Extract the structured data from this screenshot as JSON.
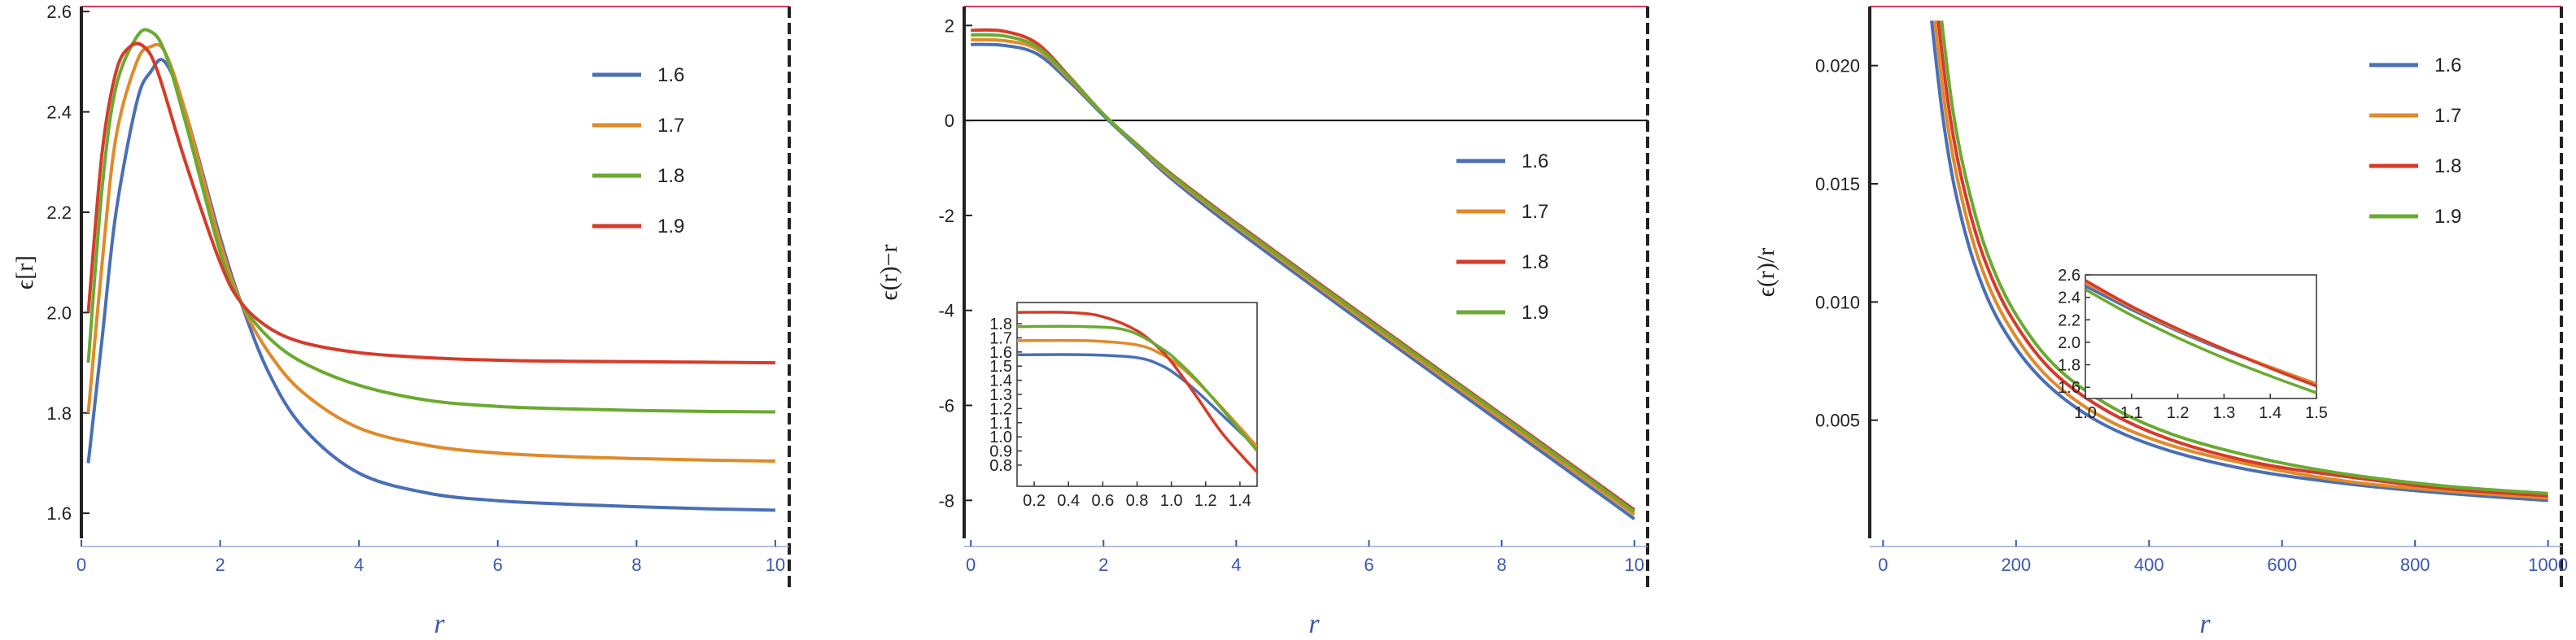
{
  "colors": {
    "s16": "#4a6fb5",
    "s17": "#e08a2a",
    "s18": "#d63b2a",
    "s19": "#6aaa30",
    "axis": "#222222",
    "accent_top": "#d63b5a",
    "xtick": "#3a57b0"
  },
  "chart_data": [
    {
      "type": "line",
      "xlabel": "r",
      "ylabel": "ϵ[r]",
      "xlim": [
        0,
        10.2
      ],
      "ylim": [
        1.55,
        2.61
      ],
      "xticks": [
        0,
        2,
        4,
        6,
        8,
        10
      ],
      "yticks": [
        1.6,
        1.8,
        2.0,
        2.2,
        2.4,
        2.6
      ],
      "xtick_labels": [
        "0",
        "2",
        "4",
        "6",
        "8",
        "10"
      ],
      "ytick_labels": [
        "1.6",
        "1.8",
        "2.0",
        "2.2",
        "2.4",
        "2.6"
      ],
      "legend_position": "top-right",
      "series": [
        {
          "name": "1.6",
          "color": "#4a6fb5",
          "x": [
            0.1,
            0.3,
            0.5,
            0.8,
            1.0,
            1.2,
            1.5,
            2.0,
            2.3,
            2.7,
            3.2,
            4.0,
            5.0,
            6.0,
            7.0,
            8.0,
            9.0,
            10.0
          ],
          "y": [
            1.7,
            1.95,
            2.2,
            2.42,
            2.48,
            2.5,
            2.4,
            2.15,
            2.02,
            1.88,
            1.77,
            1.68,
            1.64,
            1.625,
            1.618,
            1.613,
            1.609,
            1.606
          ]
        },
        {
          "name": "1.7",
          "color": "#e08a2a",
          "x": [
            0.1,
            0.3,
            0.5,
            0.8,
            1.0,
            1.2,
            1.5,
            2.0,
            2.3,
            2.7,
            3.2,
            4.0,
            5.0,
            6.0,
            7.0,
            8.0,
            9.0,
            10.0
          ],
          "y": [
            1.8,
            2.1,
            2.35,
            2.5,
            2.53,
            2.52,
            2.4,
            2.14,
            2.02,
            1.92,
            1.84,
            1.77,
            1.735,
            1.72,
            1.713,
            1.709,
            1.706,
            1.704
          ]
        },
        {
          "name": "1.8",
          "color": "#6aaa30",
          "x": [
            0.1,
            0.3,
            0.5,
            0.8,
            1.0,
            1.2,
            1.5,
            2.0,
            2.3,
            2.7,
            3.2,
            4.0,
            5.0,
            6.0,
            7.0,
            8.0,
            9.0,
            10.0
          ],
          "y": [
            1.9,
            2.25,
            2.45,
            2.55,
            2.56,
            2.52,
            2.38,
            2.12,
            2.02,
            1.95,
            1.9,
            1.855,
            1.825,
            1.813,
            1.808,
            1.805,
            1.803,
            1.802
          ]
        },
        {
          "name": "1.9",
          "color": "#d63b2a",
          "x": [
            0.1,
            0.3,
            0.5,
            0.7,
            0.9,
            1.1,
            1.5,
            2.0,
            2.3,
            2.7,
            3.2,
            4.0,
            5.0,
            6.0,
            7.0,
            8.0,
            9.0,
            10.0
          ],
          "y": [
            2.0,
            2.32,
            2.48,
            2.53,
            2.53,
            2.48,
            2.3,
            2.1,
            2.02,
            1.97,
            1.94,
            1.92,
            1.91,
            1.905,
            1.903,
            1.902,
            1.901,
            1.9
          ]
        }
      ]
    },
    {
      "type": "line",
      "xlabel": "r",
      "ylabel": "ϵ(r)−r",
      "xlim": [
        -0.1,
        10.2
      ],
      "ylim": [
        -8.8,
        2.4
      ],
      "xticks": [
        0,
        2,
        4,
        6,
        8,
        10
      ],
      "yticks": [
        -8,
        -6,
        -4,
        -2,
        0,
        2
      ],
      "xtick_labels": [
        "0",
        "2",
        "4",
        "6",
        "8",
        "10"
      ],
      "ytick_labels": [
        "-8",
        "-6",
        "-4",
        "-2",
        "0",
        "2"
      ],
      "legend_position": "right",
      "series": [
        {
          "name": "1.6",
          "color": "#4a6fb5",
          "x": [
            0,
            0.5,
            1.0,
            1.5,
            2.0,
            2.5,
            3.0,
            4.0,
            6.0,
            8.0,
            10.0
          ],
          "y": [
            1.6,
            1.58,
            1.4,
            0.8,
            0.1,
            -0.55,
            -1.2,
            -2.3,
            -4.35,
            -6.37,
            -8.39
          ]
        },
        {
          "name": "1.7",
          "color": "#e08a2a",
          "x": [
            0,
            0.5,
            1.0,
            1.5,
            2.0,
            2.5,
            3.0,
            4.0,
            6.0,
            8.0,
            10.0
          ],
          "y": [
            1.7,
            1.68,
            1.5,
            0.85,
            0.12,
            -0.52,
            -1.15,
            -2.23,
            -4.28,
            -6.29,
            -8.3
          ]
        },
        {
          "name": "1.8",
          "color": "#d63b2a",
          "x": [
            0,
            0.5,
            1.0,
            1.5,
            2.0,
            2.5,
            3.0,
            4.0,
            6.0,
            8.0,
            10.0
          ],
          "y": [
            1.9,
            1.88,
            1.62,
            0.9,
            0.13,
            -0.5,
            -1.1,
            -2.16,
            -4.19,
            -6.19,
            -8.2
          ]
        },
        {
          "name": "1.9",
          "color": "#6aaa30",
          "x": [
            0,
            0.5,
            1.0,
            1.5,
            2.0,
            2.5,
            3.0,
            4.0,
            6.0,
            8.0,
            10.0
          ],
          "y": [
            1.8,
            1.78,
            1.55,
            0.88,
            0.13,
            -0.51,
            -1.12,
            -2.19,
            -4.22,
            -6.22,
            -8.24
          ]
        }
      ],
      "inset": {
        "xlim": [
          0.1,
          1.5
        ],
        "ylim": [
          0.65,
          1.95
        ],
        "xticks": [
          0.2,
          0.4,
          0.6,
          0.8,
          1.0,
          1.2,
          1.4
        ],
        "yticks": [
          0.8,
          0.9,
          1.0,
          1.1,
          1.2,
          1.3,
          1.4,
          1.5,
          1.6,
          1.7,
          1.8
        ],
        "xtick_labels": [
          "0.2",
          "0.4",
          "0.6",
          "0.8",
          "1.0",
          "1.2",
          "1.4"
        ],
        "ytick_labels": [
          "0.8",
          "0.9",
          "1.0",
          "1.1",
          "1.2",
          "1.3",
          "1.4",
          "1.5",
          "1.6",
          "1.7",
          "1.8"
        ],
        "series": [
          {
            "name": "1.6",
            "color": "#4a6fb5",
            "x": [
              0.1,
              0.5,
              0.8,
              0.95,
              1.05,
              1.15,
              1.3,
              1.5
            ],
            "y": [
              1.58,
              1.58,
              1.56,
              1.5,
              1.42,
              1.32,
              1.15,
              0.92
            ]
          },
          {
            "name": "1.7",
            "color": "#e08a2a",
            "x": [
              0.1,
              0.5,
              0.8,
              0.95,
              1.05,
              1.15,
              1.3,
              1.5
            ],
            "y": [
              1.68,
              1.68,
              1.65,
              1.58,
              1.5,
              1.39,
              1.2,
              0.93
            ]
          },
          {
            "name": "1.8",
            "color": "#d63b2a",
            "x": [
              0.1,
              0.4,
              0.6,
              0.8,
              0.95,
              1.05,
              1.15,
              1.3,
              1.5
            ],
            "y": [
              1.88,
              1.88,
              1.85,
              1.75,
              1.6,
              1.45,
              1.28,
              1.02,
              0.75
            ]
          },
          {
            "name": "1.9",
            "color": "#6aaa30",
            "x": [
              0.1,
              0.5,
              0.75,
              0.95,
              1.05,
              1.15,
              1.3,
              1.5
            ],
            "y": [
              1.78,
              1.78,
              1.75,
              1.62,
              1.52,
              1.4,
              1.19,
              0.9
            ]
          }
        ]
      }
    },
    {
      "type": "line",
      "xlabel": "r",
      "ylabel": "ϵ(r)/r",
      "xlim": [
        -20,
        1020
      ],
      "ylim": [
        0,
        0.0225
      ],
      "xticks": [
        0,
        200,
        400,
        600,
        800,
        1000
      ],
      "yticks": [
        0.005,
        0.01,
        0.015,
        0.02
      ],
      "xtick_labels": [
        "0",
        "200",
        "400",
        "600",
        "800",
        "1000"
      ],
      "ytick_labels": [
        "0.005",
        "0.010",
        "0.015",
        "0.020"
      ],
      "legend_position": "top-right",
      "series": [
        {
          "name": "1.6",
          "color": "#4a6fb5",
          "x": [
            73,
            90,
            110,
            140,
            180,
            240,
            320,
            420,
            550,
            700,
            850,
            1000
          ],
          "y": [
            0.0219,
            0.0178,
            0.0145,
            0.0114,
            0.0089,
            0.0067,
            0.005,
            0.0038,
            0.0029,
            0.0023,
            0.0019,
            0.0016
          ]
        },
        {
          "name": "1.7",
          "color": "#e08a2a",
          "x": [
            78,
            95,
            115,
            145,
            185,
            245,
            325,
            425,
            555,
            700,
            850,
            1000
          ],
          "y": [
            0.0219,
            0.0179,
            0.0148,
            0.0117,
            0.0092,
            0.0069,
            0.0052,
            0.004,
            0.0031,
            0.0024,
            0.002,
            0.0017
          ]
        },
        {
          "name": "1.8",
          "color": "#d63b2a",
          "x": [
            83,
            100,
            120,
            150,
            190,
            250,
            330,
            430,
            560,
            700,
            850,
            1000
          ],
          "y": [
            0.0219,
            0.018,
            0.015,
            0.012,
            0.0095,
            0.0072,
            0.0055,
            0.0042,
            0.0032,
            0.0026,
            0.0021,
            0.0018
          ]
        },
        {
          "name": "1.9",
          "color": "#6aaa30",
          "x": [
            88,
            105,
            125,
            155,
            195,
            255,
            335,
            435,
            565,
            700,
            850,
            1000
          ],
          "y": [
            0.0219,
            0.0181,
            0.0152,
            0.0122,
            0.0097,
            0.0074,
            0.0057,
            0.0044,
            0.0034,
            0.0027,
            0.0022,
            0.0019
          ]
        }
      ],
      "inset": {
        "xlim": [
          1.0,
          1.5
        ],
        "ylim": [
          1.5,
          2.6
        ],
        "xticks": [
          1.0,
          1.1,
          1.2,
          1.3,
          1.4,
          1.5
        ],
        "yticks": [
          1.6,
          1.8,
          2.0,
          2.2,
          2.4,
          2.6
        ],
        "xtick_labels": [
          "1.0",
          "1.1",
          "1.2",
          "1.3",
          "1.4",
          "1.5"
        ],
        "ytick_labels": [
          "1.6",
          "1.8",
          "2.0",
          "2.2",
          "2.4",
          "2.6"
        ],
        "series": [
          {
            "name": "1.6",
            "color": "#4a6fb5",
            "x": [
              1.0,
              1.1,
              1.2,
              1.3,
              1.4,
              1.5
            ],
            "y": [
              2.5,
              2.29,
              2.1,
              1.93,
              1.78,
              1.63
            ]
          },
          {
            "name": "1.7",
            "color": "#e08a2a",
            "x": [
              1.0,
              1.1,
              1.2,
              1.3,
              1.4,
              1.5
            ],
            "y": [
              2.53,
              2.31,
              2.11,
              1.94,
              1.78,
              1.63
            ]
          },
          {
            "name": "1.8",
            "color": "#d63b2a",
            "x": [
              1.0,
              1.1,
              1.2,
              1.3,
              1.4,
              1.5
            ],
            "y": [
              2.55,
              2.32,
              2.12,
              1.94,
              1.77,
              1.61
            ]
          },
          {
            "name": "1.9",
            "color": "#6aaa30",
            "x": [
              1.0,
              1.1,
              1.2,
              1.3,
              1.4,
              1.5
            ],
            "y": [
              2.47,
              2.24,
              2.04,
              1.86,
              1.7,
              1.55
            ]
          }
        ]
      }
    }
  ]
}
